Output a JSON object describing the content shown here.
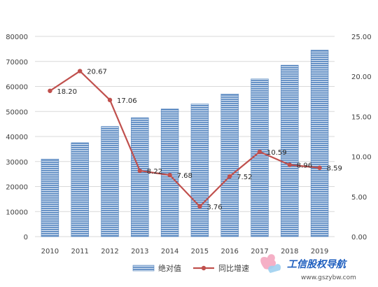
{
  "chart_data": {
    "type": "bar",
    "categories": [
      "2010",
      "2011",
      "2012",
      "2013",
      "2014",
      "2015",
      "2016",
      "2017",
      "2018",
      "2019"
    ],
    "series": [
      {
        "name": "绝对值",
        "type": "bar",
        "axis": "left",
        "values": [
          31000,
          37500,
          44000,
          47500,
          51000,
          53000,
          57000,
          63000,
          68500,
          74500
        ],
        "color": "#4f81bd"
      },
      {
        "name": "同比增速",
        "type": "line",
        "axis": "right",
        "values": [
          18.2,
          20.67,
          17.06,
          8.22,
          7.68,
          3.76,
          7.52,
          10.59,
          8.96,
          8.59
        ],
        "labels": [
          "18.20",
          "20.67",
          "17.06",
          "8.22",
          "7.68",
          "3.76",
          "7.52",
          "10.59",
          "8.96",
          "8.59"
        ],
        "color": "#c0504d"
      }
    ],
    "y_left": {
      "ylim": [
        0,
        80000
      ],
      "ticks": [
        "0",
        "10000",
        "20000",
        "30000",
        "40000",
        "50000",
        "60000",
        "70000",
        "80000"
      ]
    },
    "y_right": {
      "ylim": [
        0,
        25
      ],
      "ticks": [
        "0.00",
        "5.00",
        "10.00",
        "15.00",
        "20.00",
        "25.00"
      ]
    },
    "grid": true,
    "legend": "bottom"
  },
  "watermark": {
    "title": "工信股权导航",
    "url": "www.gszybw.com"
  }
}
